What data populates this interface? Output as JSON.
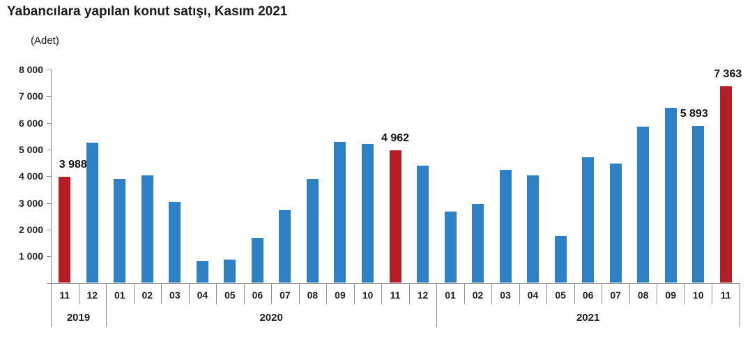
{
  "header": {
    "title": "Yabancılara yapılan konut satışı, Kasım 2021",
    "unit_label": "(Adet)"
  },
  "colors": {
    "bar": "#2e81c4",
    "highlight": "#b41e24",
    "axis": "#8f8f8f",
    "text": "#1f1f1f"
  },
  "chart_data": {
    "type": "bar",
    "title": "Yabancılara yapılan konut satışı, Kasım 2021",
    "ylabel": "(Adet)",
    "ylim": [
      0,
      8000
    ],
    "grid": false,
    "legend": "none",
    "y_ticks": [
      {
        "value": 8000,
        "label": "8 000"
      },
      {
        "value": 7000,
        "label": "7 000"
      },
      {
        "value": 6000,
        "label": "6 000"
      },
      {
        "value": 5000,
        "label": "5 000"
      },
      {
        "value": 4000,
        "label": "4 000"
      },
      {
        "value": 3000,
        "label": "3 000"
      },
      {
        "value": 2000,
        "label": "2 000"
      },
      {
        "value": 1000,
        "label": "1 000"
      }
    ],
    "points": [
      {
        "year": "2019",
        "month": "11",
        "value": 3988,
        "highlight": true,
        "label": "3 988",
        "label_dx": 12
      },
      {
        "year": "2019",
        "month": "12",
        "value": 5260,
        "highlight": false
      },
      {
        "year": "2020",
        "month": "01",
        "value": 3890,
        "highlight": false
      },
      {
        "year": "2020",
        "month": "02",
        "value": 4020,
        "highlight": false
      },
      {
        "year": "2020",
        "month": "03",
        "value": 3050,
        "highlight": false
      },
      {
        "year": "2020",
        "month": "04",
        "value": 810,
        "highlight": false
      },
      {
        "year": "2020",
        "month": "05",
        "value": 870,
        "highlight": false
      },
      {
        "year": "2020",
        "month": "06",
        "value": 1680,
        "highlight": false
      },
      {
        "year": "2020",
        "month": "07",
        "value": 2720,
        "highlight": false
      },
      {
        "year": "2020",
        "month": "08",
        "value": 3890,
        "highlight": false
      },
      {
        "year": "2020",
        "month": "09",
        "value": 5280,
        "highlight": false
      },
      {
        "year": "2020",
        "month": "10",
        "value": 5220,
        "highlight": false
      },
      {
        "year": "2020",
        "month": "11",
        "value": 4962,
        "highlight": true,
        "label": "4 962",
        "label_dx": 0
      },
      {
        "year": "2020",
        "month": "12",
        "value": 4410,
        "highlight": false
      },
      {
        "year": "2021",
        "month": "01",
        "value": 2670,
        "highlight": false
      },
      {
        "year": "2021",
        "month": "02",
        "value": 2970,
        "highlight": false
      },
      {
        "year": "2021",
        "month": "03",
        "value": 4240,
        "highlight": false
      },
      {
        "year": "2021",
        "month": "04",
        "value": 4030,
        "highlight": false
      },
      {
        "year": "2021",
        "month": "05",
        "value": 1770,
        "highlight": false
      },
      {
        "year": "2021",
        "month": "06",
        "value": 4720,
        "highlight": false
      },
      {
        "year": "2021",
        "month": "07",
        "value": 4480,
        "highlight": false
      },
      {
        "year": "2021",
        "month": "08",
        "value": 5850,
        "highlight": false
      },
      {
        "year": "2021",
        "month": "09",
        "value": 6570,
        "highlight": false
      },
      {
        "year": "2021",
        "month": "10",
        "value": 5893,
        "highlight": false,
        "label": "5 893",
        "label_dx": -6
      },
      {
        "year": "2021",
        "month": "11",
        "value": 7363,
        "highlight": true,
        "label": "7 363",
        "label_dx": 3
      }
    ]
  }
}
